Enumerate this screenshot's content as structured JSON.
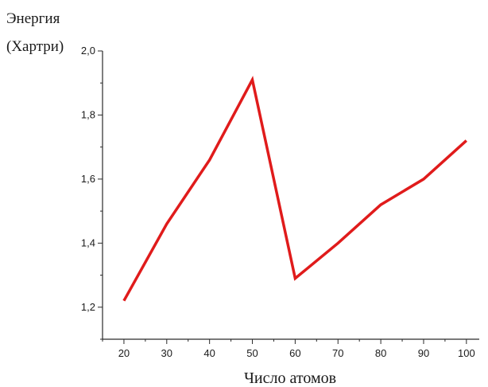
{
  "chart_data": {
    "type": "line",
    "title": "",
    "ylabel_lines": [
      "Энергия",
      "(Хартри)"
    ],
    "xlabel": "Число атомов",
    "x": [
      20,
      30,
      40,
      50,
      60,
      70,
      80,
      90,
      100
    ],
    "series": [
      {
        "values": [
          1.22,
          1.46,
          1.66,
          1.91,
          1.29,
          1.4,
          1.52,
          1.6,
          1.72
        ],
        "color": "#e01b1b"
      }
    ],
    "xticks": [
      "20",
      "30",
      "40",
      "50",
      "60",
      "70",
      "80",
      "90",
      "100"
    ],
    "yticks": [
      "1,2",
      "1,4",
      "1,6",
      "1,8",
      "2,0"
    ],
    "ytick_values": [
      1.2,
      1.4,
      1.6,
      1.8,
      2.0
    ],
    "xlim": [
      15,
      103
    ],
    "ylim": [
      1.1,
      2.0
    ],
    "grid": false
  }
}
